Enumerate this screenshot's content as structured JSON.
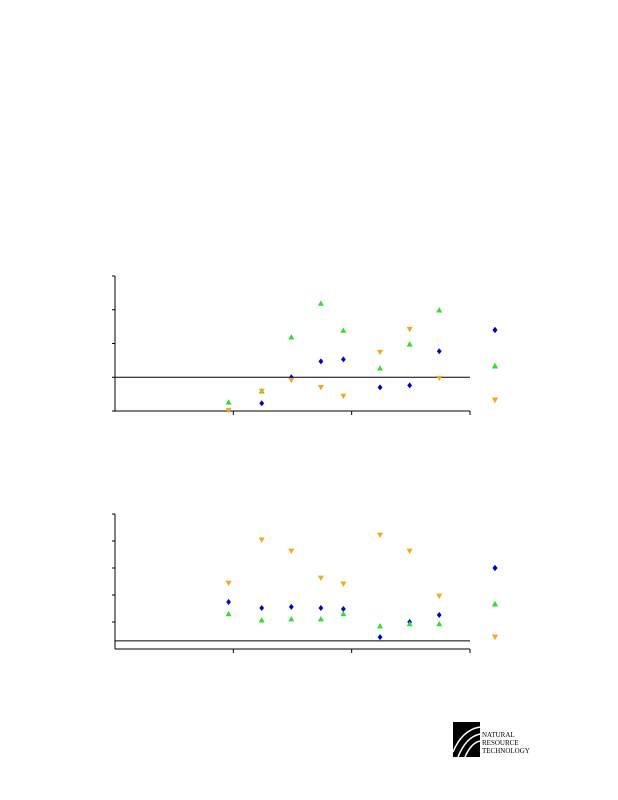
{
  "chart_data": [
    {
      "type": "scatter",
      "xlim": [
        0,
        3
      ],
      "xticks": [
        1,
        2,
        3
      ],
      "ylim": [
        -1,
        3
      ],
      "yticks": [
        -1,
        0,
        1,
        2,
        3
      ],
      "hline": 0,
      "x": [
        0.96,
        1.24,
        1.49,
        1.74,
        1.93,
        2.24,
        2.49,
        2.74
      ],
      "series": [
        {
          "color": "#0000cc",
          "marker": "diamond",
          "values": [
            null,
            -0.77,
            0,
            0.47,
            0.53,
            -0.3,
            -0.24,
            0.77
          ]
        },
        {
          "color": "#33dd33",
          "marker": "triangle-up",
          "values": [
            -0.74,
            -0.41,
            1.19,
            2.19,
            1.39,
            0.27,
            0.98,
            1.99
          ]
        },
        {
          "color": "#f5a623",
          "marker": "triangle-down",
          "values": [
            -0.98,
            -0.41,
            -0.09,
            -0.3,
            -0.56,
            0.74,
            1.42,
            -0.03
          ]
        }
      ]
    },
    {
      "type": "scatter",
      "xlim": [
        0,
        3
      ],
      "xticks": [
        1,
        2,
        3
      ],
      "ylim": [
        0,
        5
      ],
      "yticks": [
        1,
        2,
        3,
        4,
        5
      ],
      "hline": 0.3,
      "x": [
        0.96,
        1.24,
        1.49,
        1.74,
        1.93,
        2.24,
        2.49,
        2.74
      ],
      "series": [
        {
          "color": "#0000cc",
          "marker": "diamond",
          "values": [
            1.74,
            1.52,
            1.56,
            1.52,
            1.48,
            0.44,
            1.0,
            1.26
          ]
        },
        {
          "color": "#33dd33",
          "marker": "triangle-up",
          "values": [
            1.3,
            1.07,
            1.11,
            1.11,
            1.3,
            0.85,
            0.93,
            0.93
          ]
        },
        {
          "color": "#f5a623",
          "marker": "triangle-down",
          "values": [
            2.44,
            4.04,
            3.63,
            2.63,
            2.41,
            4.22,
            3.63,
            1.96
          ]
        }
      ]
    }
  ],
  "logo": {
    "lines": [
      "NATURAL",
      "RESOURCE",
      "TECHNOLOGY"
    ]
  }
}
